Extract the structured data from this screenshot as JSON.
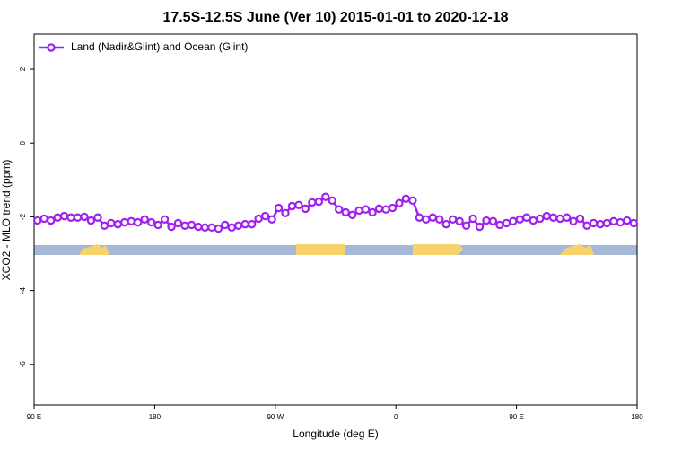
{
  "chart_data": {
    "type": "line",
    "title": "17.5S-12.5S June (Ver 10)   2015-01-01 to 2020-12-18",
    "x_label": "Longitude (deg E)",
    "y_label": "XCO2 - MLO trend (ppm)",
    "x": [
      92.5,
      97.5,
      102.5,
      107.5,
      112.5,
      117.5,
      122.5,
      127.5,
      132.5,
      137.5,
      142.5,
      147.5,
      152.5,
      157.5,
      162.5,
      167.5,
      172.5,
      177.5,
      182.5,
      187.5,
      192.5,
      197.5,
      202.5,
      207.5,
      212.5,
      217.5,
      222.5,
      227.5,
      232.5,
      237.5,
      242.5,
      247.5,
      252.5,
      257.5,
      262.5,
      267.5,
      272.5,
      277.5,
      282.5,
      287.5,
      292.5,
      297.5,
      302.5,
      307.5,
      312.5,
      317.5,
      322.5,
      327.5,
      332.5,
      337.5,
      342.5,
      347.5,
      352.5,
      357.5,
      362.5,
      367.5,
      372.5,
      377.5,
      382.5,
      387.5,
      392.5,
      397.5,
      402.5,
      407.5,
      412.5,
      417.5,
      422.5,
      427.5,
      432.5,
      437.5,
      442.5,
      447.5,
      452.5,
      457.5,
      462.5,
      467.5,
      472.5,
      477.5,
      482.5,
      487.5,
      492.5,
      497.5,
      502.5,
      507.5,
      512.5,
      517.5,
      522.5,
      527.5,
      532.5,
      537.5
    ],
    "series": [
      {
        "name": "Land (Nadir&Glint) and Ocean (Glint)",
        "color": "#a020f0",
        "values": [
          -2.1,
          -2.05,
          -2.1,
          -2.02,
          -1.98,
          -2.02,
          -2.02,
          -2.0,
          -2.1,
          -2.02,
          -2.24,
          -2.17,
          -2.2,
          -2.15,
          -2.12,
          -2.15,
          -2.07,
          -2.15,
          -2.22,
          -2.07,
          -2.27,
          -2.17,
          -2.24,
          -2.22,
          -2.27,
          -2.29,
          -2.29,
          -2.32,
          -2.22,
          -2.29,
          -2.24,
          -2.2,
          -2.2,
          -2.05,
          -1.98,
          -2.07,
          -1.76,
          -1.9,
          -1.71,
          -1.68,
          -1.78,
          -1.61,
          -1.59,
          -1.46,
          -1.56,
          -1.8,
          -1.88,
          -1.95,
          -1.83,
          -1.8,
          -1.88,
          -1.78,
          -1.8,
          -1.76,
          -1.63,
          -1.51,
          -1.56,
          -2.02,
          -2.07,
          -2.02,
          -2.07,
          -2.2,
          -2.07,
          -2.12,
          -2.24,
          -2.05,
          -2.27,
          -2.1,
          -2.12,
          -2.22,
          -2.17,
          -2.12,
          -2.07,
          -2.02,
          -2.1,
          -2.05,
          -1.98,
          -2.02,
          -2.05,
          -2.02,
          -2.12,
          -2.05,
          -2.24,
          -2.17,
          -2.2,
          -2.17,
          -2.12,
          -2.15,
          -2.1,
          -2.17
        ]
      }
    ],
    "xlim": [
      90,
      540
    ],
    "xticks": [
      {
        "value": 90,
        "label": "90 E"
      },
      {
        "value": 180,
        "label": "180"
      },
      {
        "value": 270,
        "label": "90 W"
      },
      {
        "value": 360,
        "label": "0"
      },
      {
        "value": 450,
        "label": "90 E"
      },
      {
        "value": 540,
        "label": "180"
      }
    ],
    "ylim": [
      -7.1,
      2.95
    ],
    "yticks": [
      -6,
      -4,
      -2,
      0,
      2
    ],
    "legend": "top-left"
  }
}
